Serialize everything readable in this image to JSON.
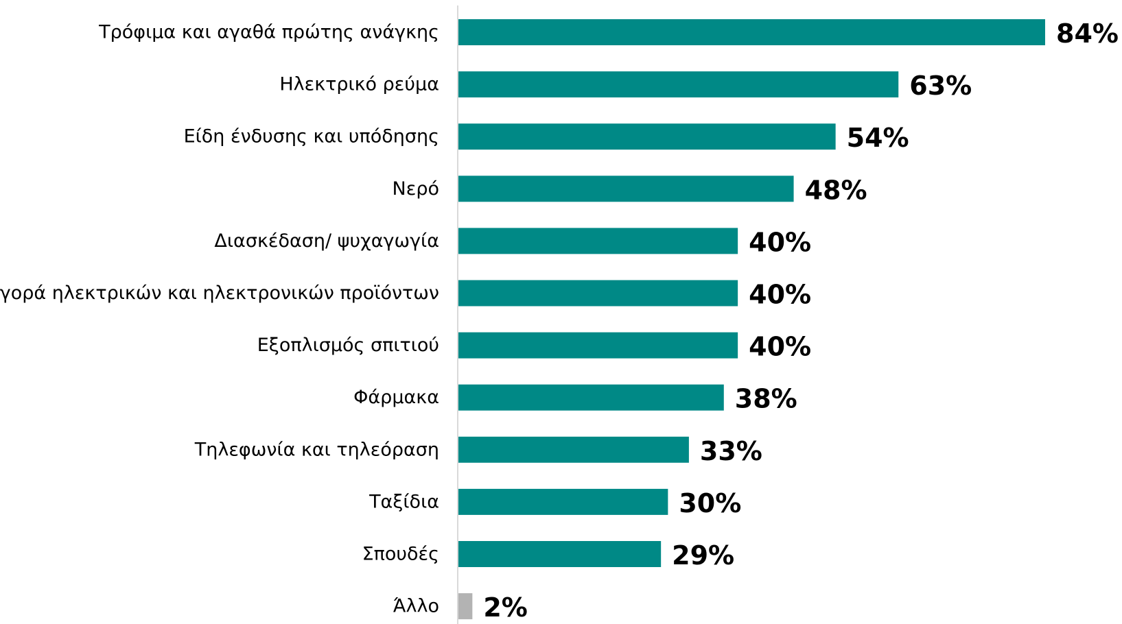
{
  "chart_data": {
    "type": "bar",
    "orientation": "horizontal",
    "title": "",
    "xlabel": "",
    "ylabel": "",
    "xlim": [
      0,
      84
    ],
    "grid": false,
    "legend": "none",
    "categories": [
      "Τρόφιμα και αγαθά πρώτης ανάγκης",
      "Ηλεκτρικό ρεύμα",
      "Είδη ένδυσης και υπόδησης",
      "Νερό",
      "Διασκέδαση/ ψυχαγωγία",
      "Αγορά ηλεκτρικών και ηλεκτρονικών προϊόντων",
      "Εξοπλισμός σπιτιού",
      "Φάρμακα",
      "Τηλεφωνία και τηλεόραση",
      "Ταξίδια",
      "Σπουδές",
      "Άλλο"
    ],
    "values": [
      84,
      63,
      54,
      48,
      40,
      40,
      40,
      38,
      33,
      30,
      29,
      2
    ],
    "value_labels": [
      "84%",
      "63%",
      "54%",
      "48%",
      "40%",
      "40%",
      "40%",
      "38%",
      "33%",
      "30%",
      "29%",
      "2%"
    ],
    "colors": {
      "bar": "#008986",
      "other_bar": "#b3b3b3",
      "axis": "#d9d9d9",
      "text": "#000000"
    }
  }
}
